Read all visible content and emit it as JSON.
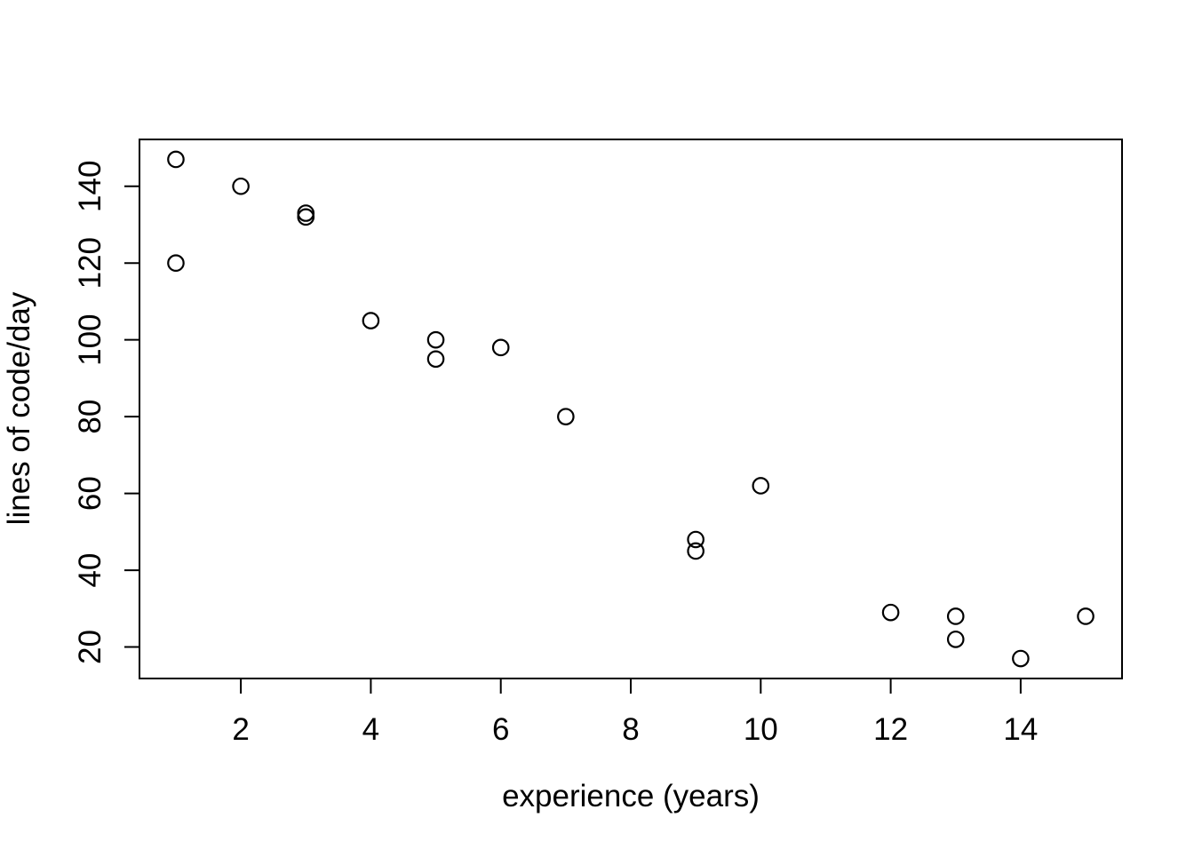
{
  "figure": {
    "background": "#ffffff",
    "foreground": "#000000"
  },
  "chart_data": {
    "type": "scatter",
    "title": "",
    "xlabel": "experience (years)",
    "ylabel": "lines of code/day",
    "x_ticks": [
      2,
      4,
      6,
      8,
      10,
      12,
      14
    ],
    "y_ticks": [
      20,
      40,
      60,
      80,
      100,
      120,
      140
    ],
    "xlim": [
      0.44,
      15.56
    ],
    "ylim": [
      11.8,
      152.2
    ],
    "grid": false,
    "legend_position": "none",
    "marker": "open-circle",
    "marker_color": "#000000",
    "points": [
      {
        "x": 1,
        "y": 147
      },
      {
        "x": 1,
        "y": 120
      },
      {
        "x": 2,
        "y": 140
      },
      {
        "x": 3,
        "y": 133
      },
      {
        "x": 3,
        "y": 132
      },
      {
        "x": 4,
        "y": 105
      },
      {
        "x": 5,
        "y": 100
      },
      {
        "x": 5,
        "y": 95
      },
      {
        "x": 6,
        "y": 98
      },
      {
        "x": 7,
        "y": 80
      },
      {
        "x": 9,
        "y": 48
      },
      {
        "x": 9,
        "y": 45
      },
      {
        "x": 10,
        "y": 62
      },
      {
        "x": 12,
        "y": 29
      },
      {
        "x": 13,
        "y": 28
      },
      {
        "x": 13,
        "y": 22
      },
      {
        "x": 14,
        "y": 17
      },
      {
        "x": 15,
        "y": 28
      }
    ]
  }
}
